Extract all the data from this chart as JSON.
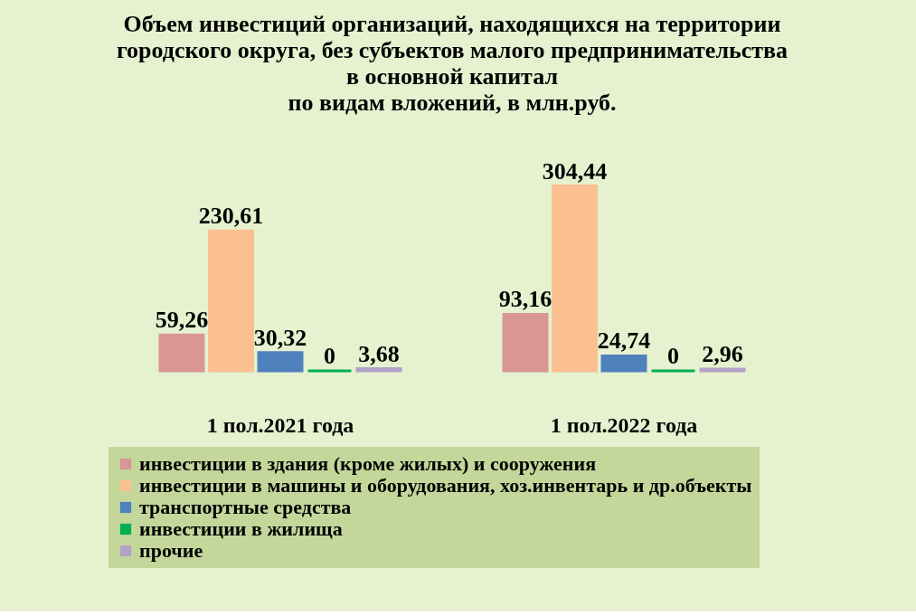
{
  "chart_data": {
    "type": "bar",
    "title": "Объем инвестиций организаций, находящихся на территории\nгородского округа, без субъектов малого предпринимательства\nв основной капитал\nпо видам вложений, в млн.руб.",
    "categories": [
      "1 пол.2021 года",
      "1 пол.2022 года"
    ],
    "series": [
      {
        "name": "инвестиции в здания (кроме жилых) и сооружения",
        "color": "#d99694",
        "values": [
          59.26,
          93.16
        ],
        "value_labels": [
          "59,26",
          "93,16"
        ]
      },
      {
        "name": "инвестиции в машины и оборудования, хоз.инвентарь и др.объекты",
        "color": "#fac090",
        "values": [
          230.61,
          304.44
        ],
        "value_labels": [
          "230,61",
          "304,44"
        ]
      },
      {
        "name": "транспортные средства",
        "color": "#4f81bd",
        "values": [
          30.32,
          24.74
        ],
        "value_labels": [
          "30,32",
          "24,74"
        ]
      },
      {
        "name": "инвестиции в жилища",
        "color": "#00b050",
        "values": [
          0,
          0
        ],
        "value_labels": [
          "0",
          "0"
        ]
      },
      {
        "name": "прочие",
        "color": "#b3a2c7",
        "values": [
          3.68,
          2.96
        ],
        "value_labels": [
          "3,68",
          "2,96"
        ]
      }
    ],
    "legend": "bottom",
    "grid": false
  }
}
